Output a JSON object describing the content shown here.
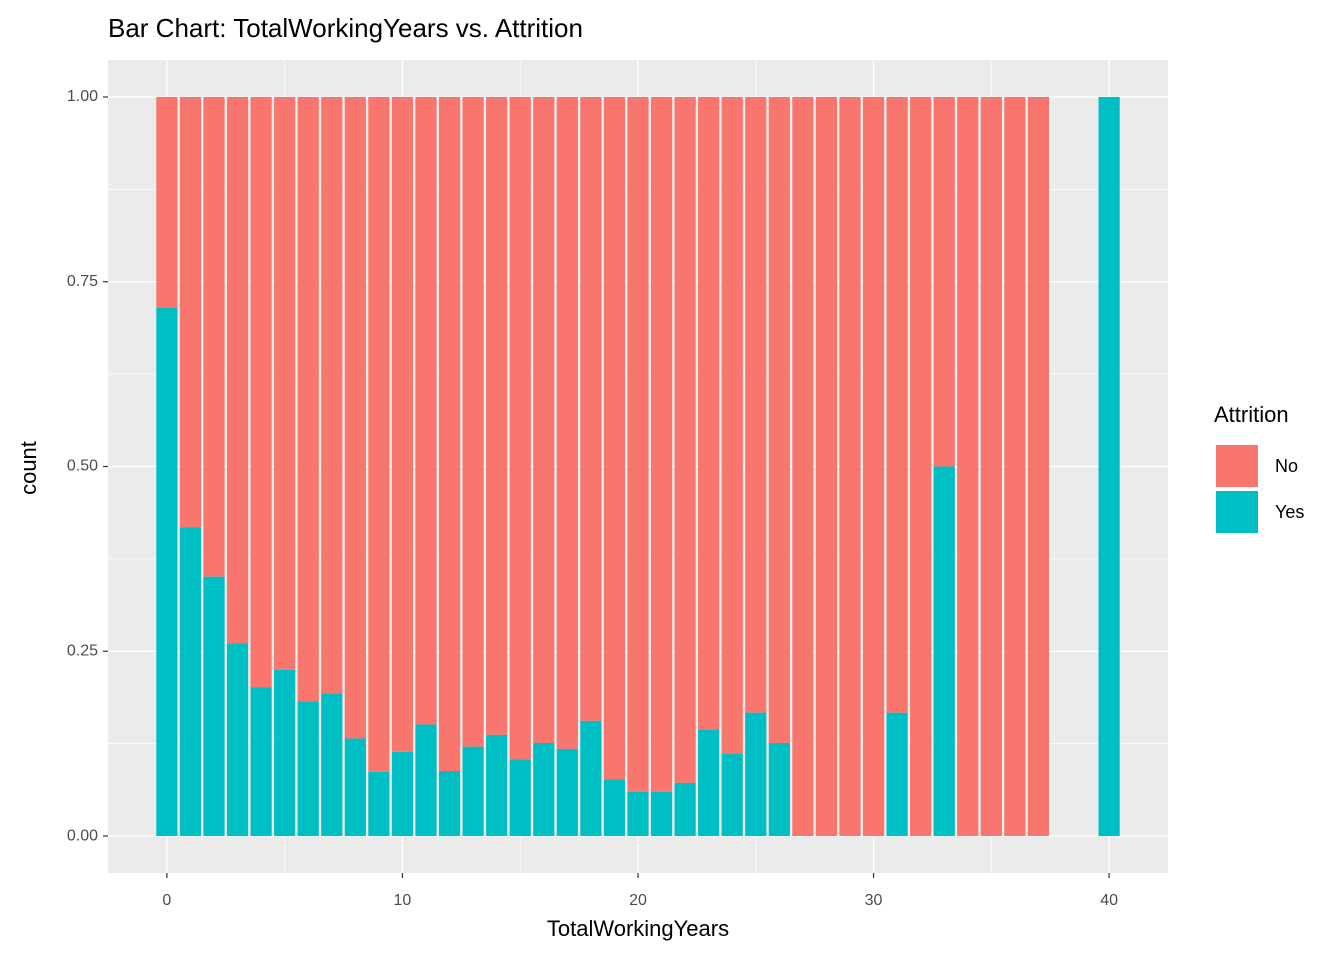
{
  "chart_data": {
    "type": "bar",
    "stacked": true,
    "title": "Bar Chart: TotalWorkingYears vs. Attrition",
    "x_label": "TotalWorkingYears",
    "y_label": "count",
    "legend_title": "Attrition",
    "legend_position": "right",
    "grid": true,
    "x": [
      0,
      1,
      2,
      3,
      4,
      5,
      6,
      7,
      8,
      9,
      10,
      11,
      12,
      13,
      14,
      15,
      16,
      17,
      18,
      19,
      20,
      21,
      22,
      23,
      24,
      25,
      26,
      27,
      28,
      29,
      30,
      31,
      32,
      33,
      34,
      35,
      36,
      37,
      40
    ],
    "series": [
      {
        "name": "No",
        "color": "#F8766D",
        "values": [
          0.285,
          0.582,
          0.649,
          0.739,
          0.799,
          0.775,
          0.818,
          0.807,
          0.868,
          0.913,
          0.886,
          0.849,
          0.912,
          0.879,
          0.863,
          0.896,
          0.874,
          0.882,
          0.844,
          0.923,
          0.94,
          0.94,
          0.928,
          0.856,
          0.889,
          0.833,
          0.874,
          1,
          1,
          1,
          1,
          0.833,
          1,
          0.5,
          1,
          1,
          1,
          1,
          0
        ]
      },
      {
        "name": "Yes",
        "color": "#00BFC4",
        "values": [
          0.715,
          0.418,
          0.351,
          0.261,
          0.201,
          0.225,
          0.182,
          0.193,
          0.132,
          0.087,
          0.114,
          0.151,
          0.088,
          0.121,
          0.137,
          0.104,
          0.126,
          0.118,
          0.156,
          0.077,
          0.06,
          0.06,
          0.072,
          0.144,
          0.111,
          0.167,
          0.126,
          0,
          0,
          0,
          0,
          0.167,
          0,
          0.5,
          0,
          0,
          0,
          0,
          1
        ]
      }
    ],
    "xlim": [
      -2.5,
      42.5
    ],
    "xticks": [
      0,
      10,
      20,
      30,
      40
    ],
    "ylim": [
      -0.05,
      1.05
    ],
    "yticks": [
      {
        "value": 0,
        "label": "0.00"
      },
      {
        "value": 0.25,
        "label": "0.25"
      },
      {
        "value": 0.5,
        "label": "0.50"
      },
      {
        "value": 0.75,
        "label": "0.75"
      },
      {
        "value": 1,
        "label": "1.00"
      }
    ]
  }
}
